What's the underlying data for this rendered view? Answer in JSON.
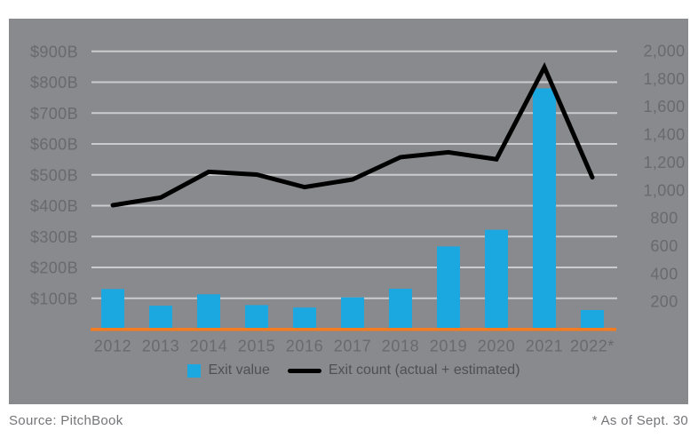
{
  "chart_data": {
    "type": "combo-bar-line",
    "title": "",
    "categories": [
      "2012",
      "2013",
      "2014",
      "2015",
      "2016",
      "2017",
      "2018",
      "2019",
      "2020",
      "2021",
      "2022*"
    ],
    "series": [
      {
        "name": "Exit value",
        "type": "bar",
        "axis": "left",
        "values": [
          130,
          76,
          113,
          78,
          70,
          103,
          131,
          268,
          322,
          780,
          62
        ]
      },
      {
        "name": "Exit count (actual + estimated)",
        "type": "line",
        "axis": "right",
        "values": [
          890,
          945,
          1130,
          1110,
          1020,
          1075,
          1235,
          1270,
          1220,
          1880,
          1090
        ]
      }
    ],
    "left_axis": {
      "min": 0,
      "max": 900,
      "unit": "billions USD",
      "ticks": [
        {
          "value": 100,
          "label": "$100B"
        },
        {
          "value": 200,
          "label": "$200B"
        },
        {
          "value": 300,
          "label": "$300B"
        },
        {
          "value": 400,
          "label": "$400B"
        },
        {
          "value": 500,
          "label": "$500B"
        },
        {
          "value": 600,
          "label": "$600B"
        },
        {
          "value": 700,
          "label": "$700B"
        },
        {
          "value": 800,
          "label": "$800B"
        },
        {
          "value": 900,
          "label": "$900B"
        }
      ]
    },
    "right_axis": {
      "min": 0,
      "max": 2000,
      "unit": "count",
      "ticks": [
        {
          "value": 200,
          "label": "200"
        },
        {
          "value": 400,
          "label": "400"
        },
        {
          "value": 600,
          "label": "600"
        },
        {
          "value": 800,
          "label": "800"
        },
        {
          "value": 1000,
          "label": "1,000"
        },
        {
          "value": 1200,
          "label": "1,200"
        },
        {
          "value": 1400,
          "label": "1,400"
        },
        {
          "value": 1600,
          "label": "1,600"
        },
        {
          "value": 1800,
          "label": "1,800"
        },
        {
          "value": 2000,
          "label": "2,000"
        }
      ]
    },
    "grid": true,
    "legend_position": "bottom"
  },
  "legend": {
    "items": [
      {
        "label": "Exit value",
        "swatch": "square"
      },
      {
        "label": "Exit count (actual + estimated)",
        "swatch": "line"
      }
    ]
  },
  "footer": {
    "source": "Source: PitchBook",
    "note": "* As of Sept. 30"
  },
  "colors": {
    "page_bg": "#FFFFFF",
    "panel_bg": "#898A8D",
    "gridline": "#CBCCCE",
    "bar": "#1BA7E0",
    "line": "#000000",
    "baseline": "#F47B20",
    "axis_text": "#696A6D",
    "legend_text": "#4F5053",
    "footer_text": "#747578"
  }
}
